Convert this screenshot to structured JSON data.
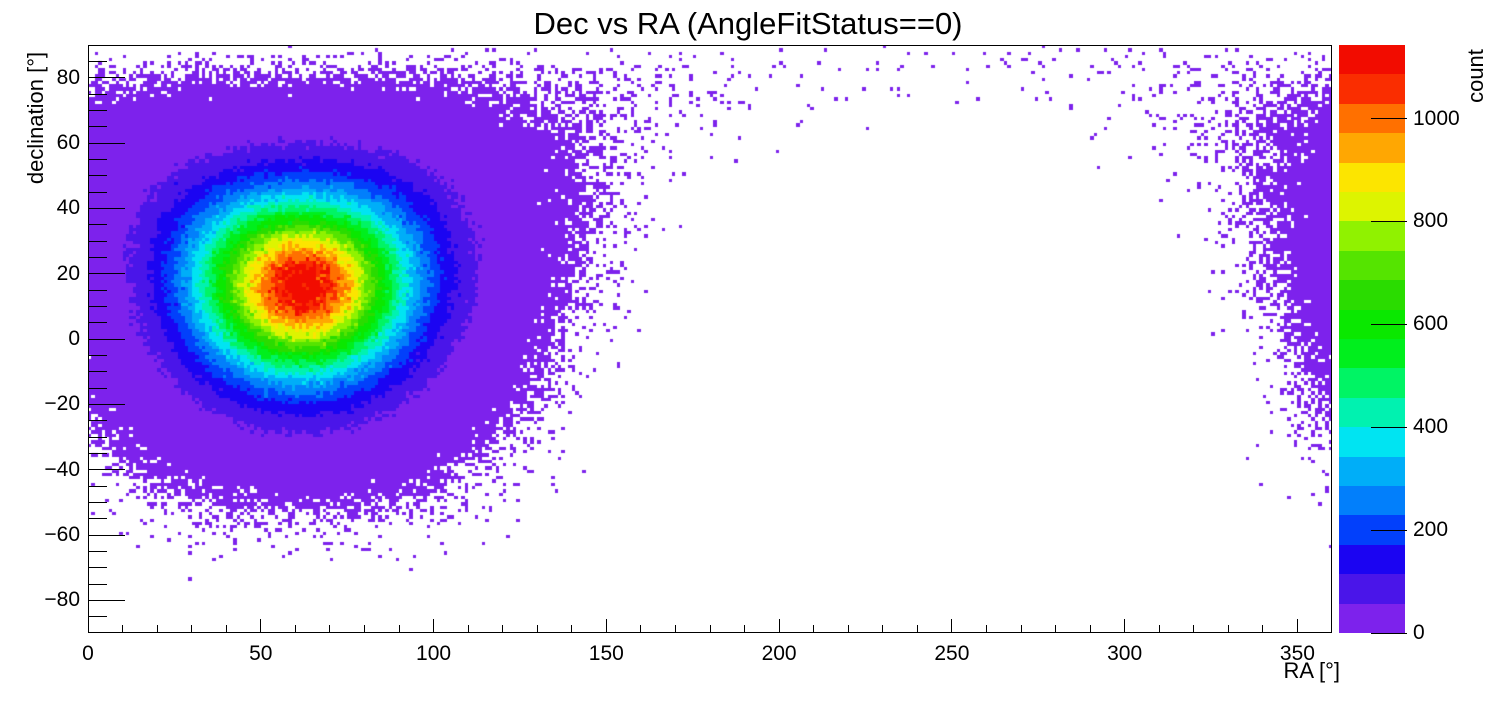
{
  "title": "Dec vs RA (AngleFitStatus==0)",
  "chart_data": {
    "type": "heatmap",
    "title": "Dec vs RA (AngleFitStatus==0)",
    "xlabel": "RA [°]",
    "ylabel": "declination [°]",
    "zlabel": "count",
    "xlim": [
      0,
      360
    ],
    "ylim": [
      -90,
      90
    ],
    "zlim": [
      0,
      1143
    ],
    "bin_deg": 1,
    "n_levels": 20,
    "grid": false,
    "legend_position": "right-colorbar",
    "x_major_ticks": [
      0,
      50,
      100,
      150,
      200,
      250,
      300,
      350
    ],
    "x_tick_labels": [
      "0",
      "50",
      "100",
      "150",
      "200",
      "250",
      "300",
      "350"
    ],
    "x_minor_step": 10,
    "y_major_ticks": [
      -80,
      -60,
      -40,
      -20,
      0,
      20,
      40,
      60,
      80
    ],
    "y_tick_labels": [
      "−80",
      "−60",
      "−40",
      "−20",
      "0",
      "20",
      "40",
      "60",
      "80"
    ],
    "y_minor_step": 5,
    "z_ticks": [
      0,
      200,
      400,
      600,
      800,
      1000
    ],
    "z_tick_labels": [
      "0",
      "200",
      "400",
      "600",
      "800",
      "1000"
    ],
    "palette": [
      "#7d22ec",
      "#4a15e9",
      "#1b04f2",
      "#0240fb",
      "#027ffb",
      "#00aef8",
      "#00e4f2",
      "#00f2b0",
      "#00f464",
      "#00ef1d",
      "#0ae800",
      "#2adc00",
      "#55e400",
      "#90f200",
      "#ddf400",
      "#fce500",
      "#ffa702",
      "#ff7000",
      "#fa2d00",
      "#f20c00"
    ],
    "distribution": {
      "model": "spherical_gaussian",
      "center_ra_deg": 62,
      "center_dec_deg": 18,
      "sigma_deg": 19.5,
      "peak_count": 1200,
      "area_weight": "cos(dec)",
      "noise": "poisson",
      "seed": 20240613
    }
  }
}
